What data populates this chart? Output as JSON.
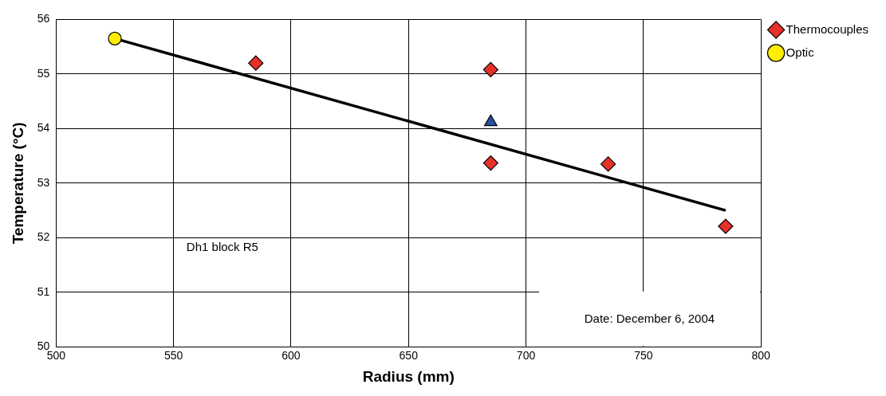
{
  "chart_data": {
    "type": "scatter",
    "xlabel": "Radius (mm)",
    "ylabel": "Temperature (°C)",
    "xlim": [
      500,
      800
    ],
    "xticks": [
      500,
      550,
      600,
      650,
      700,
      750,
      800
    ],
    "ylim": [
      50,
      56
    ],
    "yticks": [
      50,
      51,
      52,
      53,
      54,
      55,
      56
    ],
    "grid": true,
    "legend": "right",
    "series": [
      {
        "name": "Thermocouples",
        "color": "#e8302a",
        "marker": "diamond",
        "x": [
          585,
          685,
          685,
          735,
          785
        ],
        "values": [
          55.2,
          55.08,
          53.37,
          53.35,
          52.21
        ]
      },
      {
        "color": "#2b4fa3",
        "marker": "triangle",
        "x": [
          685
        ],
        "values": [
          54.12
        ]
      },
      {
        "name": "Optic",
        "color": "#ffee00",
        "marker": "circle",
        "x": [
          525
        ],
        "values": [
          55.65
        ]
      },
      {
        "type": "line",
        "color": "#000000",
        "marker": "none",
        "x": [
          525,
          785
        ],
        "values": [
          55.65,
          52.5
        ]
      }
    ],
    "annotations": [
      "Dh1 block R5",
      "Date: December 6, 2004"
    ]
  }
}
